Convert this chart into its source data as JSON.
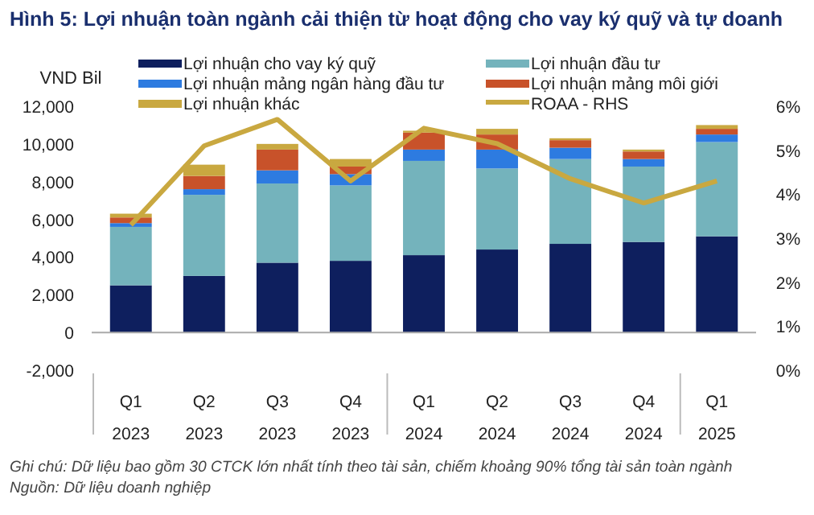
{
  "chart_data": {
    "type": "bar",
    "stacked": true,
    "title": "Hình 5: Lợi nhuận toàn ngành cải thiện từ hoạt động cho vay ký quỹ và tự doanh",
    "ylabel": "VND Bil",
    "categories": [
      "Q1 2023",
      "Q2 2023",
      "Q3 2023",
      "Q4 2023",
      "Q1 2024",
      "Q2 2024",
      "Q3 2024",
      "Q4 2024",
      "Q1 2025"
    ],
    "series": [
      {
        "name": "Lợi nhuận cho vay ký quỹ",
        "color": "#0e1f5e",
        "values": [
          2500,
          3000,
          3700,
          3800,
          4100,
          4400,
          4700,
          4800,
          5100
        ]
      },
      {
        "name": "Lợi nhuận đầu tư",
        "color": "#74b3bc",
        "values": [
          3100,
          4300,
          4200,
          4000,
          5000,
          4300,
          4500,
          4000,
          5000
        ]
      },
      {
        "name": "Lợi nhuận mảng ngân hàng đầu tư",
        "color": "#2d7be0",
        "values": [
          200,
          300,
          700,
          600,
          600,
          1000,
          600,
          400,
          400
        ]
      },
      {
        "name": "Lợi nhuận mảng môi giới",
        "color": "#c8522a",
        "values": [
          300,
          700,
          1100,
          400,
          900,
          800,
          400,
          400,
          300
        ]
      },
      {
        "name": "Lợi nhuận khác",
        "color": "#c9a840",
        "values": [
          200,
          600,
          300,
          400,
          100,
          300,
          100,
          100,
          200
        ]
      },
      {
        "name": "ROAA - RHS",
        "type": "line",
        "axis": "y2",
        "color": "#c9a840",
        "values": [
          3.3,
          5.1,
          5.7,
          4.3,
          5.5,
          5.15,
          4.35,
          3.8,
          4.3
        ]
      }
    ],
    "ylim": [
      -2000,
      12000
    ],
    "yticks": [
      {
        "value": -2000,
        "label": "-2,000"
      },
      0,
      {
        "value": 2000,
        "label": "2,000"
      },
      {
        "value": 4000,
        "label": "4,000"
      },
      {
        "value": 6000,
        "label": "6,000"
      },
      {
        "value": 8000,
        "label": "8,000"
      },
      {
        "value": 10000,
        "label": "10,000"
      },
      {
        "value": 12000,
        "label": "12,000"
      }
    ],
    "y2lim": [
      0,
      6
    ],
    "y2ticks": [
      {
        "value": 0,
        "label": "0%"
      },
      {
        "value": 1,
        "label": "1%"
      },
      {
        "value": 2,
        "label": "2%"
      },
      {
        "value": 3,
        "label": "3%"
      },
      {
        "value": 4,
        "label": "4%"
      },
      {
        "value": 5,
        "label": "5%"
      },
      {
        "value": 6,
        "label": "6%"
      }
    ],
    "legend": "top",
    "marker": "none",
    "annotations": [
      "Ghi chú: Dữ liệu bao gồm 30 CTCK lớn nhất tính theo tài sản, chiếm khoảng 90% tổng tài sản toàn ngành",
      "Nguồn: Dữ liệu doanh nghiệp"
    ]
  }
}
